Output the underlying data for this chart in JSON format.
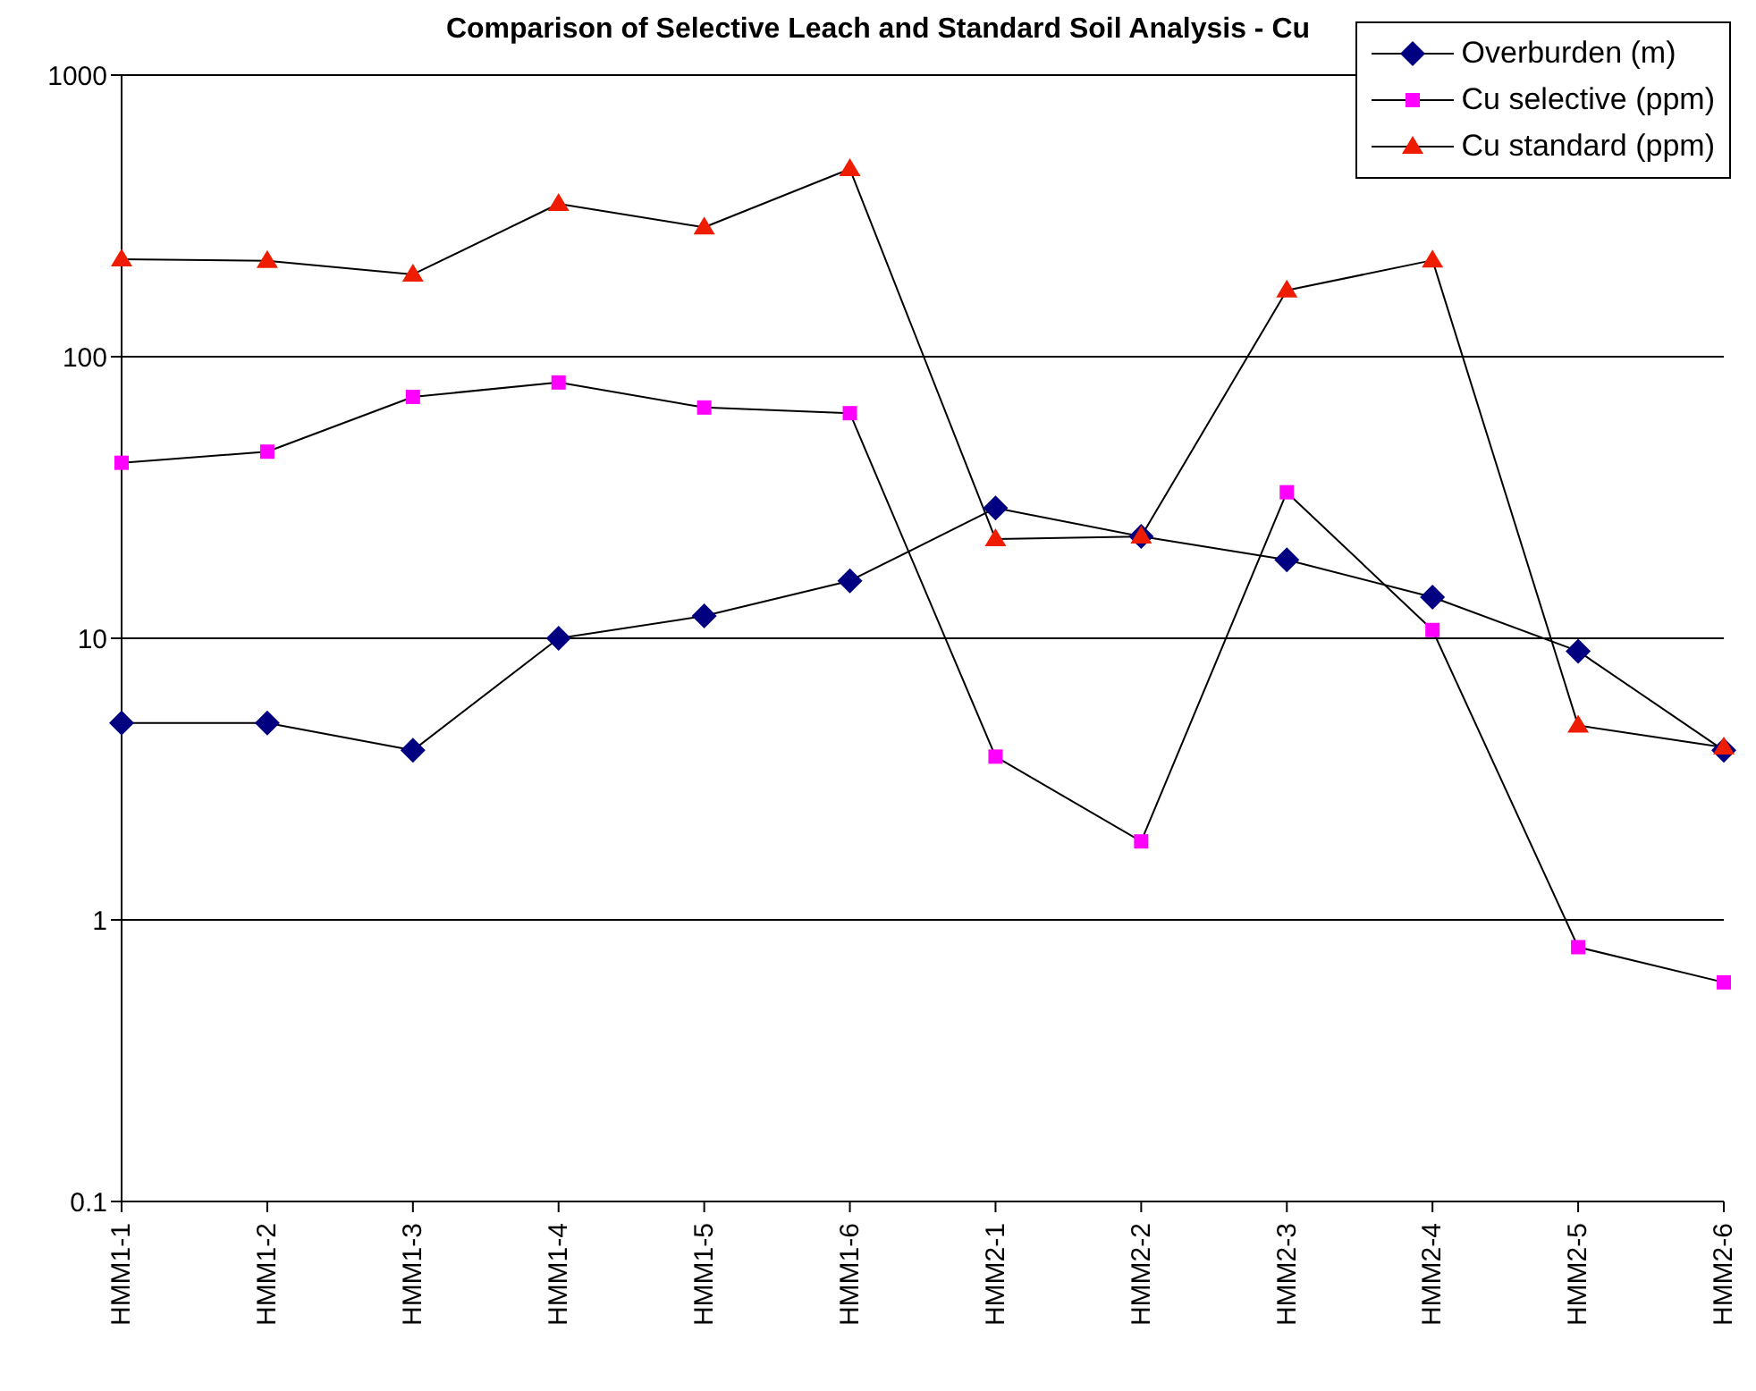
{
  "chart_data": {
    "type": "line",
    "title": "Comparison of Selective Leach and Standard Soil Analysis - Cu",
    "categories": [
      "HMM1-1",
      "HMM1-2",
      "HMM1-3",
      "HMM1-4",
      "HMM1-5",
      "HMM1-6",
      "HMM2-1",
      "HMM2-2",
      "HMM2-3",
      "HMM2-4",
      "HMM2-5",
      "HMM2-6"
    ],
    "series": [
      {
        "name": "Overburden (m)",
        "color": "#000080",
        "marker": "diamond",
        "values": [
          5,
          5,
          4,
          10,
          12,
          16,
          29,
          23,
          19,
          14,
          9,
          4
        ]
      },
      {
        "name": "Cu selective (ppm)",
        "color": "#ff00ff",
        "marker": "square",
        "values": [
          42,
          46,
          72,
          81,
          66,
          63,
          3.8,
          1.9,
          33,
          10.7,
          0.8,
          0.6
        ]
      },
      {
        "name": "Cu standard (ppm)",
        "color": "#ee1c00",
        "marker": "triangle",
        "values": [
          222,
          219,
          196,
          349,
          288,
          464,
          22.5,
          23,
          172,
          220,
          4.9,
          4.1
        ]
      }
    ],
    "log": "y",
    "ylim": [
      0.1,
      1000
    ],
    "yticks": [
      0.1,
      1,
      10,
      100,
      1000
    ],
    "grid": "y",
    "legend": "top right"
  }
}
